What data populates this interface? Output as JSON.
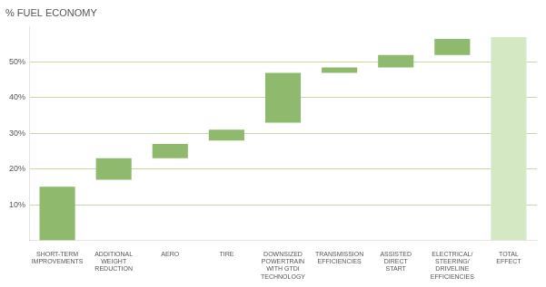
{
  "chart_data": {
    "type": "bar",
    "title": "% FUEL ECONOMY",
    "categories": [
      "SHORT-TERM\nIMPROVEMENTS",
      "ADDITIONAL\nWEIGHT\nREDUCTION",
      "AERO",
      "TIRE",
      "DOWNSIZED\nPOWERTRAIN\nWITH GTDI\nTECHNOLOGY",
      "TRANSMISSION\nEFFICIENCIES",
      "ASSISTED\nDIRECT\nSTART",
      "ELECTRICAL/\nSTEERING/\nDRIVELINE\nEFFICIENCIES",
      "TOTAL\nEFFECT"
    ],
    "bottoms": [
      0,
      17,
      23,
      28,
      33,
      47,
      48.5,
      52,
      0
    ],
    "values": [
      15,
      6,
      4,
      3,
      14,
      1.5,
      3.5,
      4.5,
      57
    ],
    "colors": [
      "#8fba6e",
      "#8fba6e",
      "#8fba6e",
      "#8fba6e",
      "#8fba6e",
      "#8fba6e",
      "#8fba6e",
      "#8fba6e",
      "#d5e8c4"
    ],
    "ylim": [
      0,
      60
    ],
    "yticks": [
      {
        "value": 10,
        "label": "10%"
      },
      {
        "value": 20,
        "label": "20%"
      },
      {
        "value": 30,
        "label": "30%"
      },
      {
        "value": 40,
        "label": "40%"
      },
      {
        "value": 50,
        "label": "50%"
      }
    ],
    "grid": true
  }
}
